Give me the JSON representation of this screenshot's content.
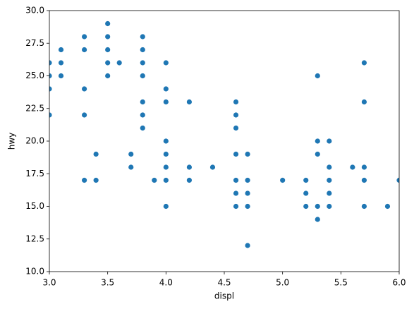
{
  "chart_data": {
    "type": "scatter",
    "x_label": "displ",
    "y_label": "hwy",
    "color": "#1f77b4",
    "x": [
      3.0,
      3.0,
      3.0,
      3.0,
      3.1,
      3.1,
      3.1,
      3.3,
      3.3,
      3.3,
      3.3,
      3.3,
      3.4,
      3.4,
      3.5,
      3.5,
      3.5,
      3.5,
      3.5,
      3.6,
      3.7,
      3.7,
      3.8,
      3.8,
      3.8,
      3.8,
      3.8,
      3.8,
      3.8,
      3.9,
      4.0,
      4.0,
      4.0,
      4.0,
      4.0,
      4.0,
      4.0,
      4.0,
      4.2,
      4.2,
      4.2,
      4.4,
      4.6,
      4.6,
      4.6,
      4.6,
      4.6,
      4.6,
      4.6,
      4.7,
      4.7,
      4.7,
      4.7,
      4.7,
      5.0,
      5.2,
      5.2,
      5.2,
      5.3,
      5.3,
      5.3,
      5.3,
      5.3,
      5.4,
      5.4,
      5.4,
      5.4,
      5.4,
      5.6,
      5.7,
      5.7,
      5.7,
      5.7,
      5.7,
      5.9,
      6.0
    ],
    "values": [
      26,
      25,
      24,
      22,
      27,
      26,
      25,
      28,
      27,
      24,
      22,
      17,
      19,
      17,
      29,
      28,
      27,
      26,
      25,
      26,
      19,
      18,
      28,
      27,
      26,
      25,
      23,
      22,
      21,
      17,
      26,
      24,
      23,
      20,
      19,
      18,
      17,
      15,
      23,
      18,
      17,
      18,
      23,
      22,
      21,
      19,
      17,
      16,
      15,
      19,
      17,
      16,
      15,
      12,
      17,
      17,
      16,
      15,
      25,
      20,
      19,
      15,
      14,
      20,
      18,
      17,
      16,
      15,
      18,
      26,
      23,
      18,
      17,
      15,
      15,
      17
    ],
    "xlim": [
      3.0,
      6.0
    ],
    "xticks": [
      {
        "value": 3.0,
        "label": "3.0"
      },
      {
        "value": 3.5,
        "label": "3.5"
      },
      {
        "value": 4.0,
        "label": "4.0"
      },
      {
        "value": 4.5,
        "label": "4.5"
      },
      {
        "value": 5.0,
        "label": "5.0"
      },
      {
        "value": 5.5,
        "label": "5.5"
      },
      {
        "value": 6.0,
        "label": "6.0"
      }
    ],
    "ylim": [
      10,
      30
    ],
    "yticks": [
      {
        "value": 10,
        "label": "10.0"
      },
      {
        "value": 12.5,
        "label": "12.5"
      },
      {
        "value": 15,
        "label": "15.0"
      },
      {
        "value": 17.5,
        "label": "17.5"
      },
      {
        "value": 20,
        "label": "20.0"
      },
      {
        "value": 22.5,
        "label": "22.5"
      },
      {
        "value": 25,
        "label": "25.0"
      },
      {
        "value": 27.5,
        "label": "27.5"
      },
      {
        "value": 30,
        "label": "30.0"
      }
    ],
    "grid": false
  }
}
